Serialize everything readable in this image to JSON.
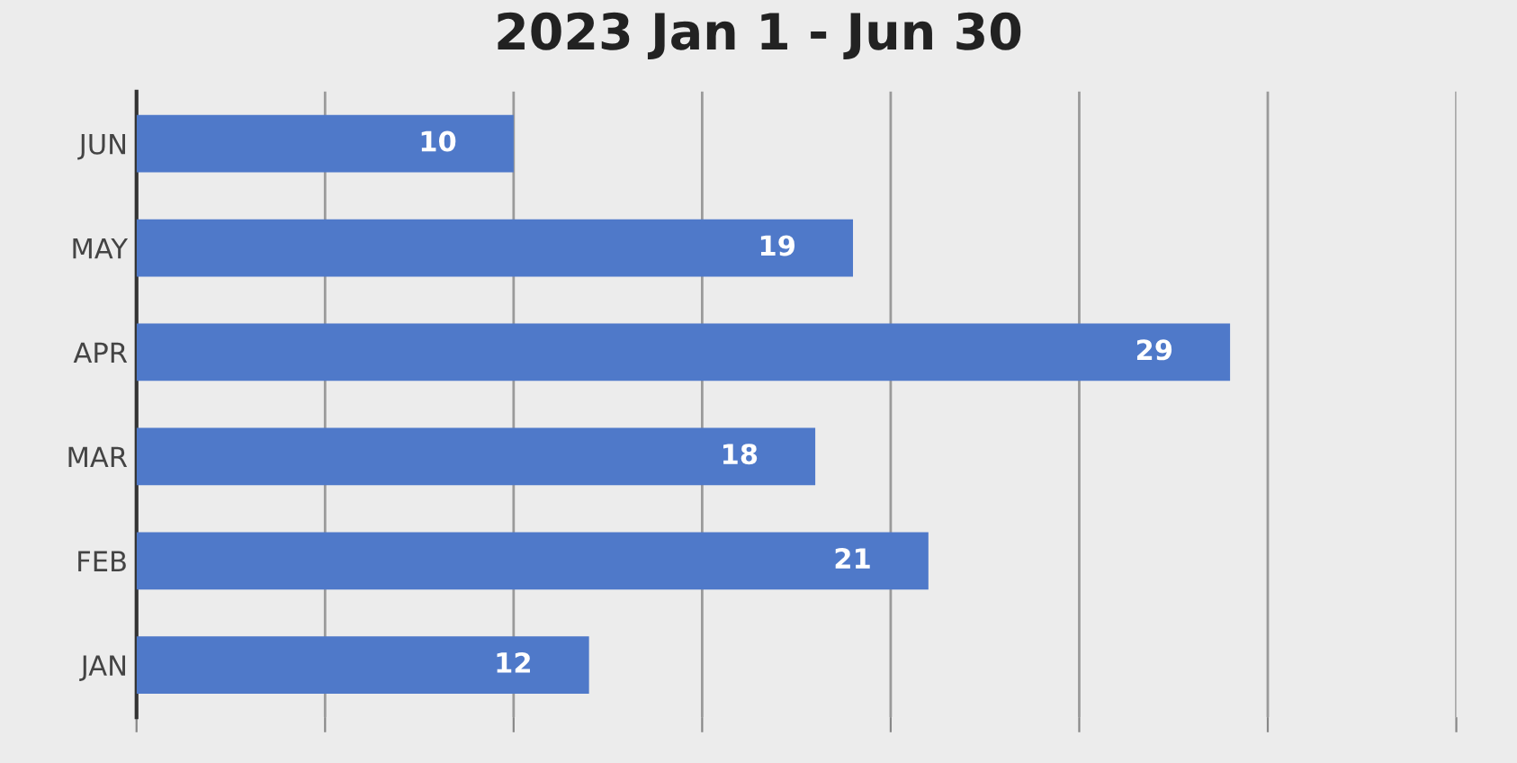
{
  "chart_data": {
    "type": "bar",
    "orientation": "horizontal",
    "title": "2023 Jan 1 - Jun 30",
    "categories": [
      "JUN",
      "MAY",
      "APR",
      "MAR",
      "FEB",
      "JAN"
    ],
    "values": [
      10,
      19,
      29,
      18,
      21,
      12
    ],
    "color": "#4f79c9",
    "data_labels": true,
    "xlim": [
      0,
      35
    ],
    "xticks": [
      {
        "value": 0,
        "label": null
      },
      {
        "value": 5,
        "label": null
      },
      {
        "value": 10,
        "label": null
      },
      {
        "value": 15,
        "label": null
      },
      {
        "value": 20,
        "label": null
      },
      {
        "value": 25,
        "label": null
      },
      {
        "value": 30,
        "label": null
      },
      {
        "value": 35,
        "label": null
      }
    ],
    "tick_labels": "y",
    "grid": "x"
  }
}
